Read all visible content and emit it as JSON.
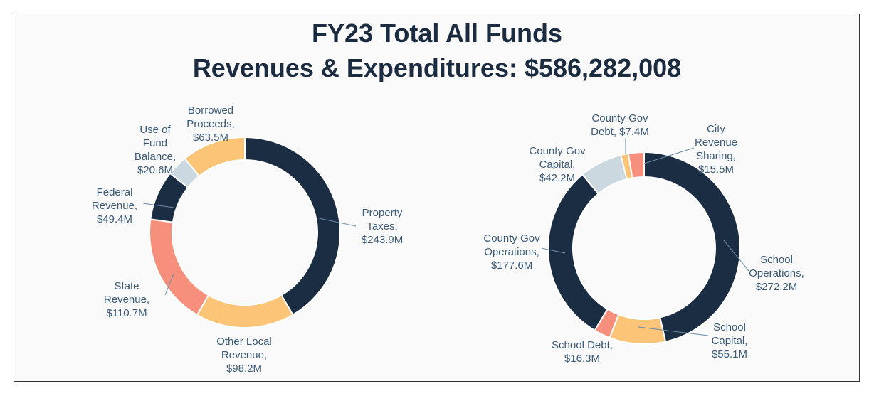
{
  "title": {
    "line1": "FY23 Total All Funds",
    "line2": "Revenues & Expenditures: $586,282,008"
  },
  "colors": {
    "navy": "#1b2d42",
    "gold": "#fcc477",
    "salmon": "#f68f7c",
    "grey": "#ccd8e0",
    "label": "#3a5a78",
    "leader": "#6b8aa8"
  },
  "chart_data": [
    {
      "type": "pie",
      "subtype": "donut",
      "name": "Revenues",
      "unit": "$M",
      "slices": [
        {
          "key": "property_taxes",
          "label_lines": [
            "Property",
            "Taxes,",
            "$243.9M"
          ],
          "value": 243.9,
          "color": "navy"
        },
        {
          "key": "other_local_revenue",
          "label_lines": [
            "Other Local",
            "Revenue,",
            "$98.2M"
          ],
          "value": 98.2,
          "color": "gold"
        },
        {
          "key": "state_revenue",
          "label_lines": [
            "State",
            "Revenue,",
            "$110.7M"
          ],
          "value": 110.7,
          "color": "salmon"
        },
        {
          "key": "federal_revenue",
          "label_lines": [
            "Federal",
            "Revenue,",
            "$49.4M"
          ],
          "value": 49.4,
          "color": "navy"
        },
        {
          "key": "use_of_fund_balance",
          "label_lines": [
            "Use of",
            "Fund",
            "Balance,",
            "$20.6M"
          ],
          "value": 20.6,
          "color": "grey"
        },
        {
          "key": "borrowed_proceeds",
          "label_lines": [
            "Borrowed",
            "Proceeds,",
            "$63.5M"
          ],
          "value": 63.5,
          "color": "gold"
        }
      ]
    },
    {
      "type": "pie",
      "subtype": "donut",
      "name": "Expenditures",
      "unit": "$M",
      "slices": [
        {
          "key": "school_operations",
          "label_lines": [
            "School",
            "Operations,",
            "$272.2M"
          ],
          "value": 272.2,
          "color": "navy"
        },
        {
          "key": "school_capital",
          "label_lines": [
            "School",
            "Capital,",
            "$55.1M"
          ],
          "value": 55.1,
          "color": "gold"
        },
        {
          "key": "school_debt",
          "label_lines": [
            "School Debt,",
            "$16.3M"
          ],
          "value": 16.3,
          "color": "salmon"
        },
        {
          "key": "county_gov_operations",
          "label_lines": [
            "County Gov",
            "Operations,",
            "$177.6M"
          ],
          "value": 177.6,
          "color": "navy"
        },
        {
          "key": "county_gov_capital",
          "label_lines": [
            "County Gov",
            "Capital,",
            "$42.2M"
          ],
          "value": 42.2,
          "color": "grey"
        },
        {
          "key": "county_gov_debt",
          "label_lines": [
            "County Gov",
            "Debt, $7.4M"
          ],
          "value": 7.4,
          "color": "gold"
        },
        {
          "key": "city_revenue_sharing",
          "label_lines": [
            "City",
            "Revenue",
            "Sharing,",
            "$15.5M"
          ],
          "value": 15.5,
          "color": "salmon"
        }
      ]
    }
  ]
}
